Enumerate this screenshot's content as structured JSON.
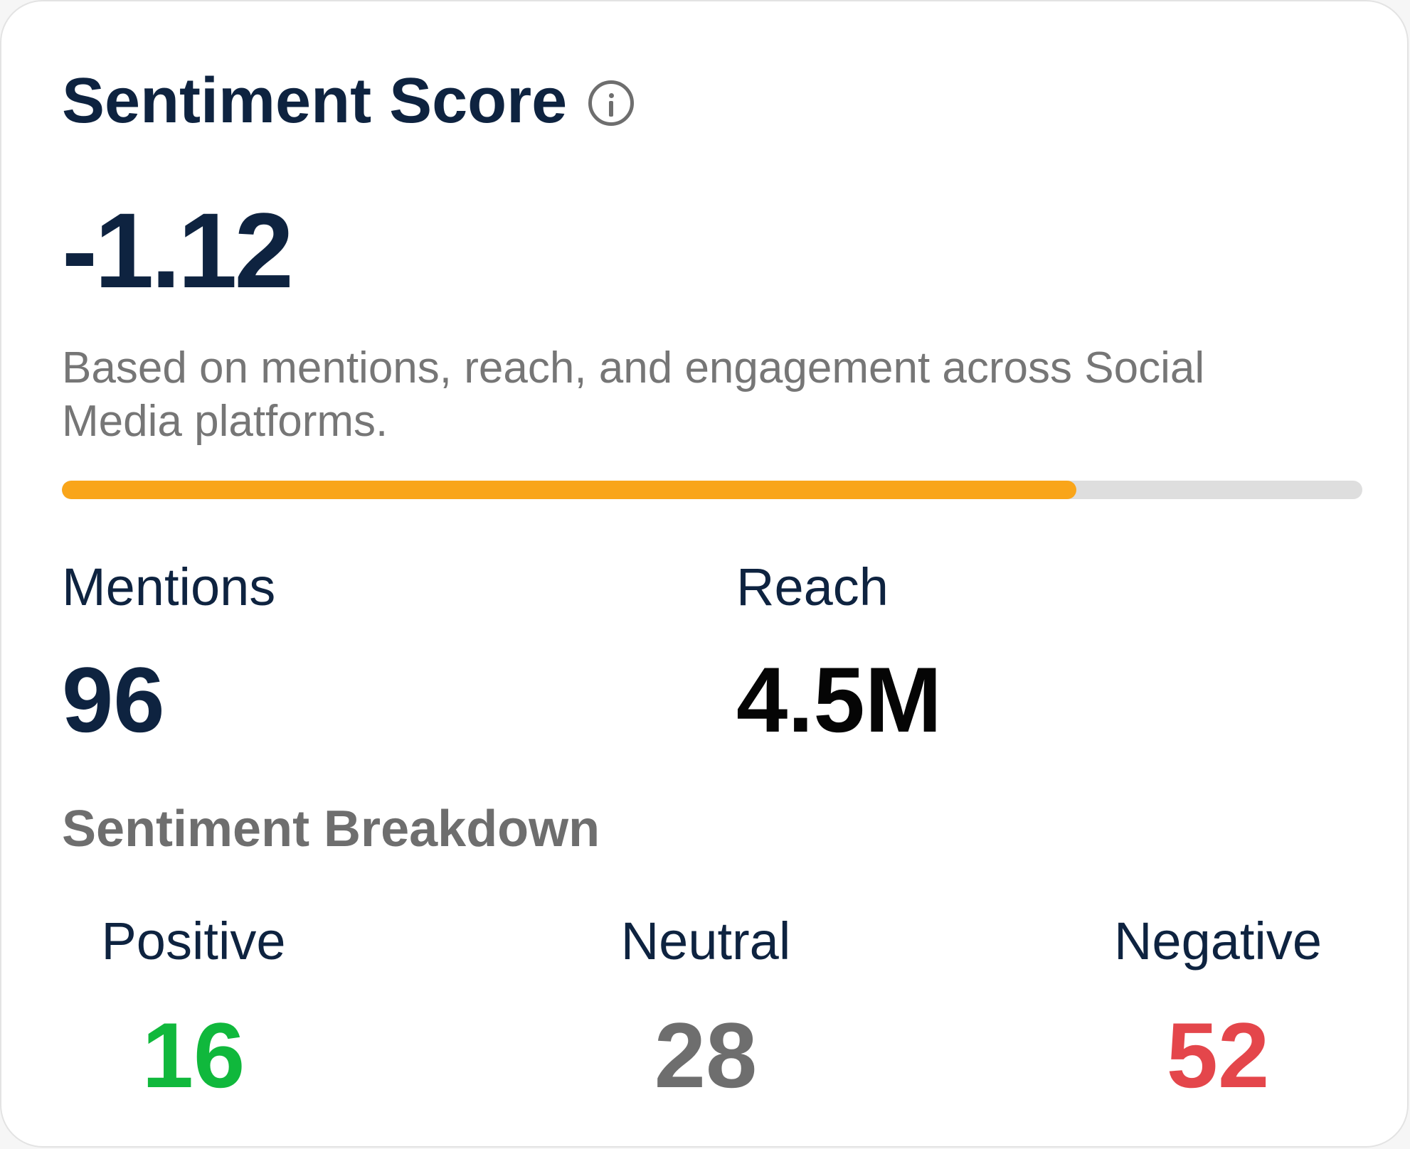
{
  "card": {
    "title": "Sentiment Score",
    "info_icon": "info-icon",
    "score": "-1.12",
    "description": "Based on mentions, reach, and engagement across Social Media platforms.",
    "progress_percent": 78,
    "progress_color": "#f9a51a",
    "track_color": "#dedede"
  },
  "stats": {
    "mentions_label": "Mentions",
    "mentions_value": "96",
    "reach_label": "Reach",
    "reach_value": "4.5M"
  },
  "breakdown": {
    "title": "Sentiment Breakdown",
    "positive_label": "Positive",
    "positive_value": "16",
    "positive_color": "#10b83c",
    "neutral_label": "Neutral",
    "neutral_value": "28",
    "neutral_color": "#6e6e6e",
    "negative_label": "Negative",
    "negative_value": "52",
    "negative_color": "#e4464b"
  },
  "colors": {
    "primary_text": "#0e2340",
    "muted_text": "#767676"
  }
}
